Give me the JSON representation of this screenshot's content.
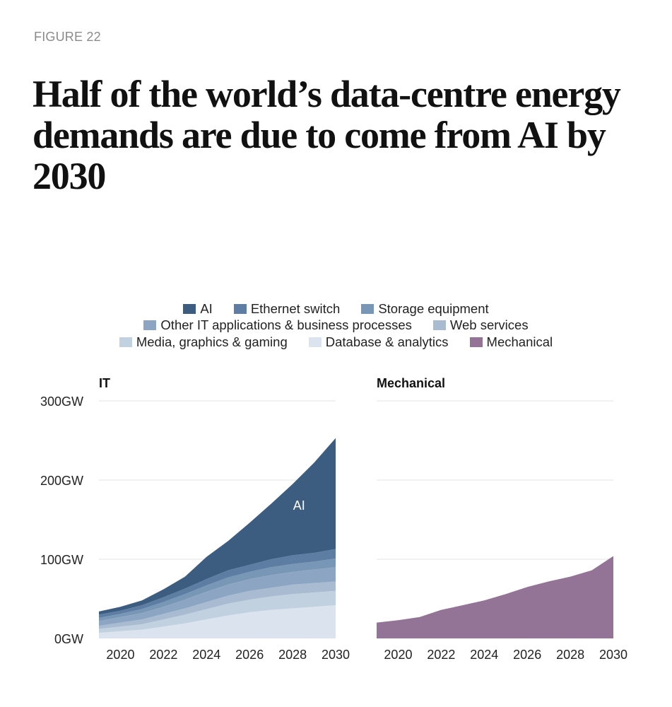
{
  "figure_label": "FIGURE 22",
  "title": "Half of the world’s data-centre energy demands are due to come from AI by 2030",
  "legend": {
    "rows": [
      [
        {
          "label": "AI",
          "color": "#3d5d80"
        },
        {
          "label": "Ethernet switch",
          "color": "#5e7da3"
        },
        {
          "label": "Storage equipment",
          "color": "#7896b6"
        }
      ],
      [
        {
          "label": "Other IT applications & business processes",
          "color": "#8ca5c2"
        },
        {
          "label": "Web services",
          "color": "#a8bbd1"
        }
      ],
      [
        {
          "label": "Media, graphics & gaming",
          "color": "#c2d1e0"
        },
        {
          "label": "Database & analytics",
          "color": "#dbe4ee"
        },
        {
          "label": "Mechanical",
          "color": "#937396"
        }
      ]
    ]
  },
  "chart_data": [
    {
      "type": "area",
      "title": "IT",
      "stacked": true,
      "x": [
        2019,
        2020,
        2021,
        2022,
        2023,
        2024,
        2025,
        2026,
        2027,
        2028,
        2029,
        2030
      ],
      "ylim": [
        0,
        300
      ],
      "yticks": [
        0,
        100,
        200,
        300
      ],
      "ytick_labels": [
        "0GW",
        "100GW",
        "200GW",
        "300GW"
      ],
      "xticks": [
        2020,
        2022,
        2024,
        2026,
        2028,
        2030
      ],
      "xtick_labels": [
        "2020",
        "2022",
        "2024",
        "2026",
        "2028",
        "2030"
      ],
      "annotation": "AI",
      "series": [
        {
          "name": "Database & analytics",
          "color": "#dbe4ee",
          "values": [
            7,
            9,
            11,
            15,
            19,
            24,
            29,
            33,
            36,
            38,
            40,
            42
          ]
        },
        {
          "name": "Media, graphics & gaming",
          "color": "#c2d1e0",
          "values": [
            5,
            6,
            7,
            9,
            11,
            13,
            15,
            16,
            17,
            18,
            18,
            18
          ]
        },
        {
          "name": "Web services",
          "color": "#a8bbd1",
          "values": [
            4,
            5,
            6,
            7,
            8,
            9,
            10,
            11,
            11,
            12,
            12,
            12
          ]
        },
        {
          "name": "Other IT applications & business processes",
          "color": "#8ca5c2",
          "values": [
            6,
            7,
            8,
            9,
            11,
            13,
            14,
            15,
            16,
            16,
            17,
            18
          ]
        },
        {
          "name": "Storage equipment",
          "color": "#7896b6",
          "values": [
            4,
            4,
            5,
            6,
            7,
            8,
            9,
            9,
            10,
            10,
            10,
            11
          ]
        },
        {
          "name": "Ethernet switch",
          "color": "#5e7da3",
          "values": [
            4,
            4,
            5,
            6,
            7,
            8,
            9,
            9,
            10,
            11,
            11,
            12
          ]
        },
        {
          "name": "AI",
          "color": "#3d5d80",
          "values": [
            4,
            5,
            6,
            10,
            15,
            28,
            37,
            53,
            70,
            90,
            114,
            140
          ]
        }
      ]
    },
    {
      "type": "area",
      "title": "Mechanical",
      "stacked": false,
      "x": [
        2019,
        2020,
        2021,
        2022,
        2023,
        2024,
        2025,
        2026,
        2027,
        2028,
        2029,
        2030
      ],
      "ylim": [
        0,
        300
      ],
      "yticks": [
        0,
        100,
        200,
        300
      ],
      "xticks": [
        2020,
        2022,
        2024,
        2026,
        2028,
        2030
      ],
      "xtick_labels": [
        "2020",
        "2022",
        "2024",
        "2026",
        "2028",
        "2030"
      ],
      "series": [
        {
          "name": "Mechanical",
          "color": "#937396",
          "values": [
            20,
            23,
            27,
            36,
            42,
            48,
            56,
            65,
            72,
            78,
            86,
            104
          ]
        }
      ]
    }
  ]
}
